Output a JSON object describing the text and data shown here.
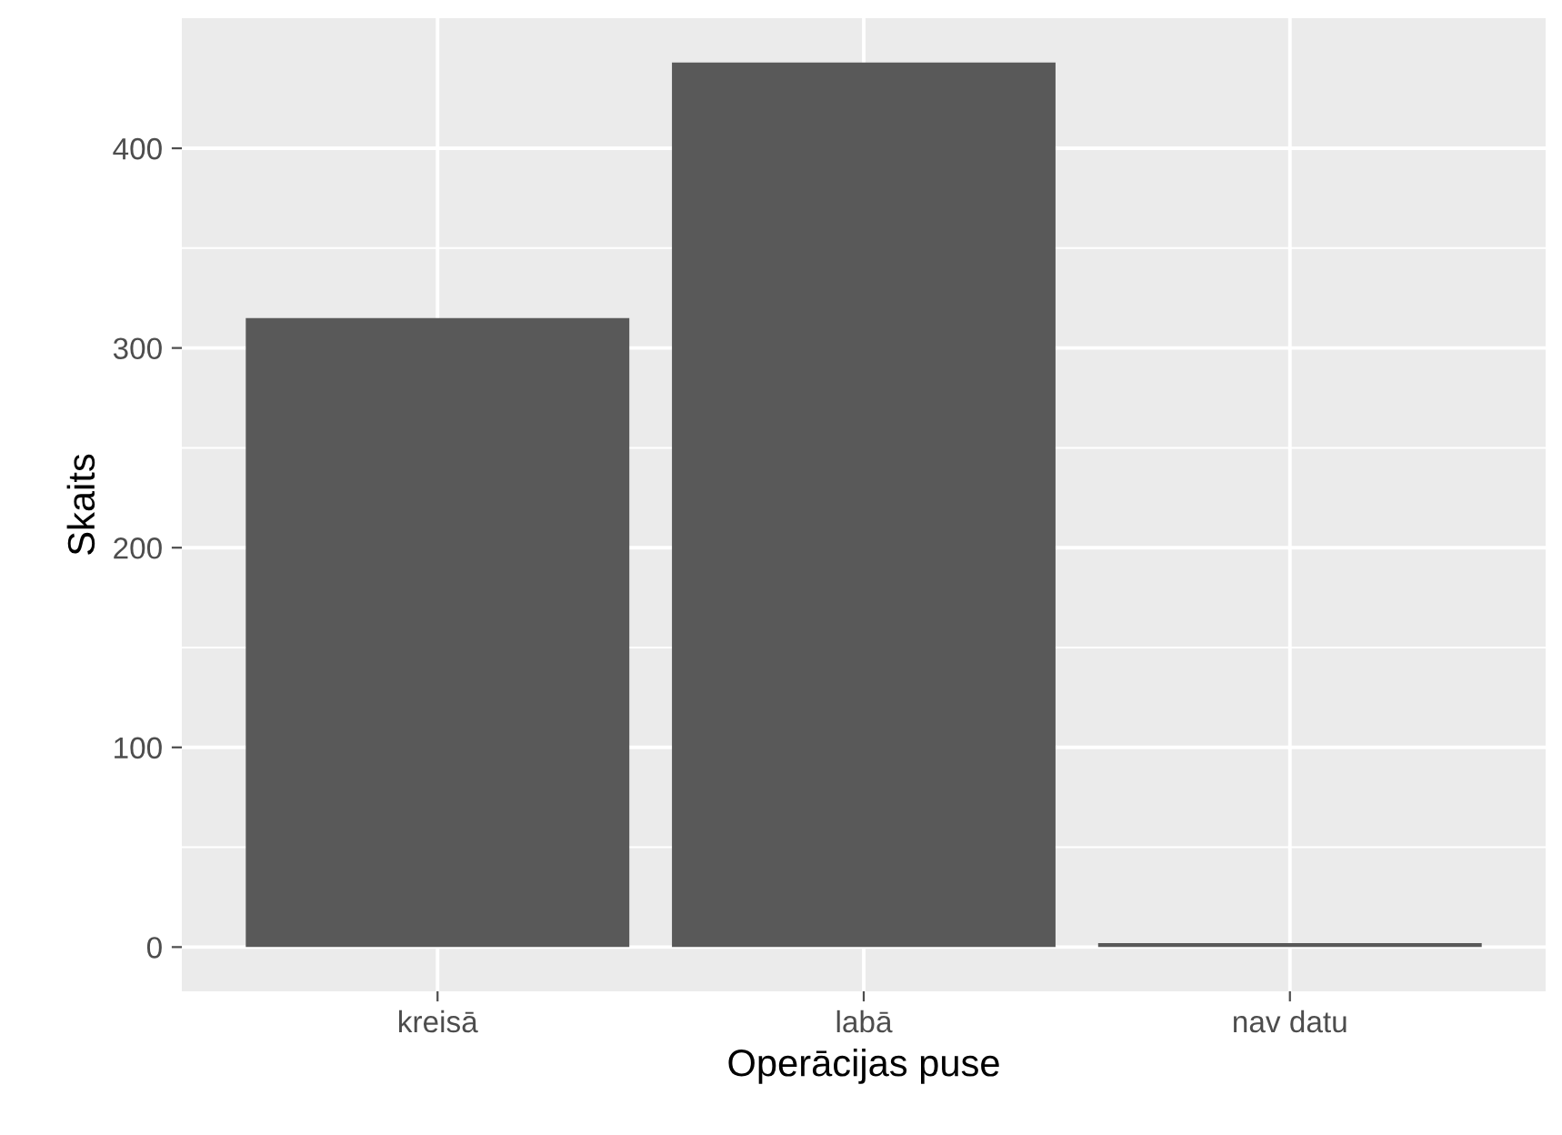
{
  "chart_data": {
    "type": "bar",
    "xlabel": "Operācijas puse",
    "ylabel": "Skaits",
    "categories": [
      "kreisā",
      "labā",
      "nav datu"
    ],
    "values": [
      315,
      443,
      2
    ],
    "color": "#595959",
    "ylim": [
      -22.15,
      465.15
    ],
    "yticks": [
      0,
      100,
      200,
      300,
      400
    ],
    "grid": true
  }
}
